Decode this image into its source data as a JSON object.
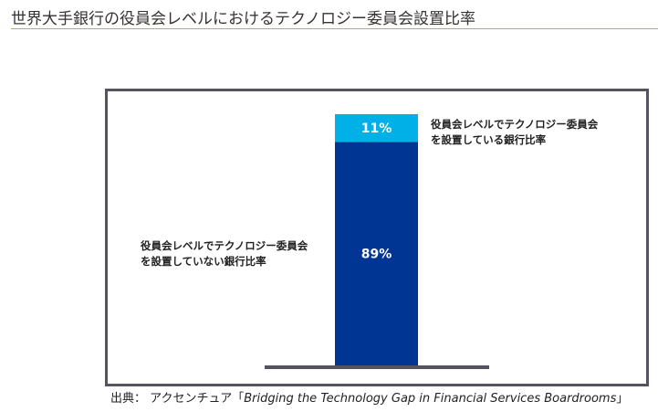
{
  "title": "世界大手銀行の役員会レベルにおけるテクノロジー委員会設置比率",
  "chart_data": {
    "type": "bar",
    "stacked": true,
    "categories": [
      ""
    ],
    "series": [
      {
        "name": "役員会レベルでテクノロジー委員会を設置していない銀行比率",
        "values": [
          89
        ],
        "label": "89%",
        "color": "#003594"
      },
      {
        "name": "役員会レベルでテクノロジー委員会を設置している銀行比率",
        "values": [
          11
        ],
        "label": "11%",
        "color": "#00b0e6"
      }
    ],
    "ylim": [
      0,
      100
    ]
  },
  "labels": {
    "with_line1": "役員会レベルでテクノロジー委員会",
    "with_line2": "を設置している銀行比率",
    "without_line1": "役員会レベルでテクノロジー委員会",
    "without_line2": "を設置していない銀行比率"
  },
  "source": {
    "prefix": "出典： アクセンチュア「",
    "title": "Bridging the Technology Gap in Financial Services Boardrooms",
    "suffix": "」"
  }
}
